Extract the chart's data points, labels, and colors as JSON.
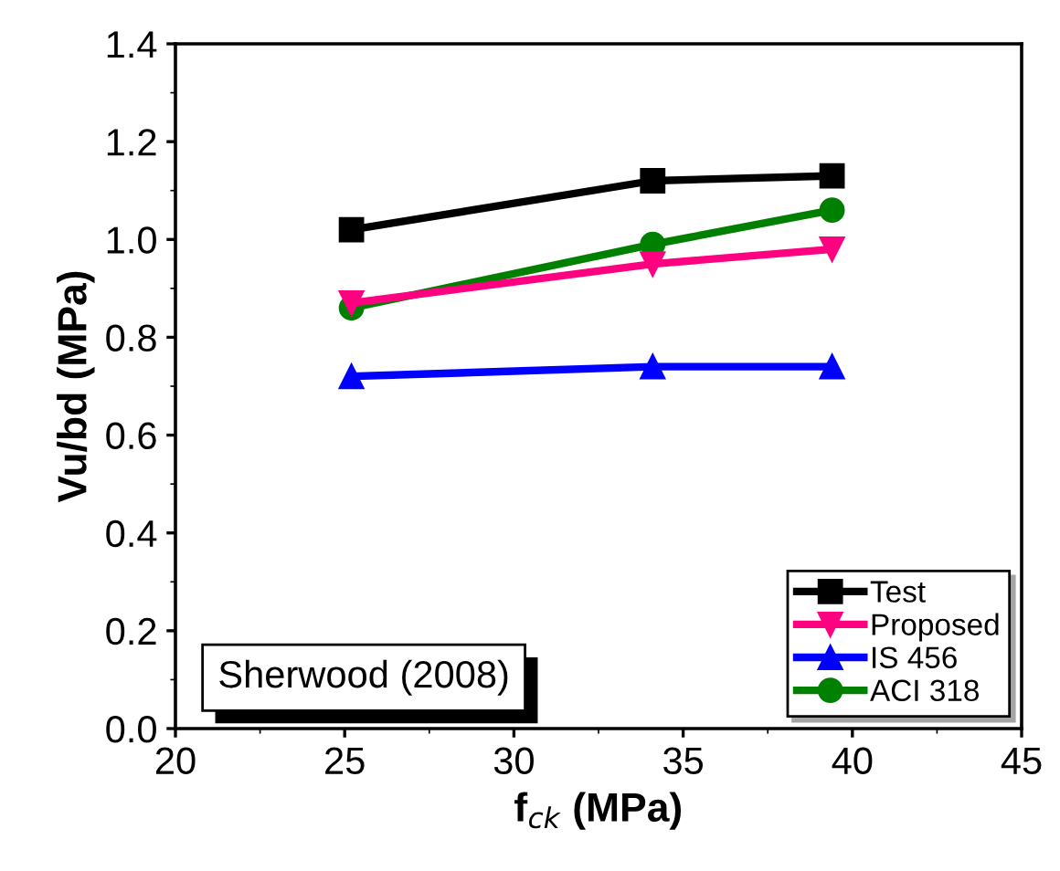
{
  "chart_data": {
    "type": "line",
    "xlabel": "f$_{ck}$ (MPa)",
    "ylabel": "Vu/bd (MPa)",
    "annotations": [
      "Sherwood (2008)"
    ],
    "x": [
      25.2,
      34.1,
      39.4
    ],
    "series": [
      {
        "name": "Test",
        "color": "#000000",
        "marker": "square",
        "values": [
          1.02,
          1.12,
          1.13
        ]
      },
      {
        "name": "Proposed",
        "color": "#ff0080",
        "marker": "triangle_down",
        "values": [
          0.87,
          0.95,
          0.98
        ]
      },
      {
        "name": "IS 456",
        "color": "#0000ff",
        "marker": "triangle",
        "values": [
          0.72,
          0.74,
          0.74
        ]
      },
      {
        "name": "ACI 318",
        "color": "#008000",
        "marker": "circle",
        "values": [
          0.86,
          0.99,
          1.06
        ]
      }
    ],
    "xlim": [
      20,
      45
    ],
    "xticks": [
      20,
      25,
      30,
      35,
      40,
      45
    ],
    "ylim": [
      0,
      1.4
    ],
    "yticks": [
      {
        "value": 0,
        "label": "0.0"
      },
      0.2,
      0.4,
      0.6,
      0.8,
      {
        "value": 1,
        "label": "1.0"
      },
      1.2,
      1.4
    ],
    "grid": false,
    "legend": "bottom right",
    "line_style": "solid"
  }
}
